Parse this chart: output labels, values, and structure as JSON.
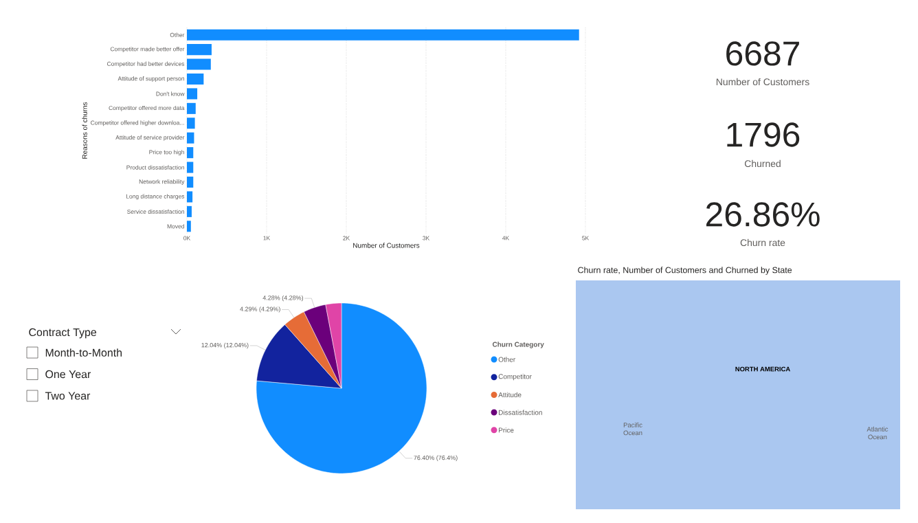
{
  "chart_data": [
    {
      "type": "bar",
      "orientation": "horizontal",
      "xlabel": "Number of Customers",
      "ylabel": "Reasons of churns",
      "categories": [
        "Other",
        "Competitor made better offer",
        "Competitor had better devices",
        "Attitude of support person",
        "Don't know",
        "Competitor offered more data",
        "Competitor offered higher downloa...",
        "Attitude of service provider",
        "Price too high",
        "Product dissatisfaction",
        "Network reliability",
        "Long distance charges",
        "Service dissatisfaction",
        "Moved"
      ],
      "values": [
        4920,
        310,
        300,
        210,
        130,
        110,
        100,
        90,
        80,
        80,
        80,
        70,
        60,
        50
      ],
      "color": "#118dff",
      "xlim": [
        0,
        5000
      ],
      "xticks": [
        {
          "value": 0,
          "label": "0K"
        },
        {
          "value": 1000,
          "label": "1K"
        },
        {
          "value": 2000,
          "label": "2K"
        },
        {
          "value": 3000,
          "label": "3K"
        },
        {
          "value": 4000,
          "label": "4K"
        },
        {
          "value": 5000,
          "label": "5K"
        }
      ],
      "grid": "x"
    },
    {
      "type": "other",
      "annotations": [
        "6687",
        "Number of Customers",
        "1796",
        "Churned",
        "26.86%",
        "Churn rate"
      ]
    },
    {
      "type": "other",
      "title": "Contract Type",
      "annotations": [
        "Month-to-Month",
        "One Year",
        "Two Year"
      ]
    },
    {
      "type": "pie",
      "legend_title": "Churn Category",
      "legend": "right",
      "categories": [
        "Other",
        "Competitor",
        "Attitude",
        "Dissatisfaction",
        "Price"
      ],
      "values": [
        76.4,
        12.04,
        4.29,
        4.28,
        2.99
      ],
      "colors": [
        "#118dff",
        "#12239e",
        "#e66c37",
        "#6b007b",
        "#e044a7"
      ],
      "value_labels": [
        "76.40% (76.4%)",
        "12.04% (12.04%)",
        "4.29% (4.29%)",
        "4.28% (4.28%)",
        null
      ]
    },
    {
      "type": "other",
      "title": "Churn rate, Number of Customers and Churned by State",
      "annotations": [
        "NORTH AMERICA",
        "Pacific Ocean",
        "Atlantic Ocean"
      ]
    }
  ]
}
